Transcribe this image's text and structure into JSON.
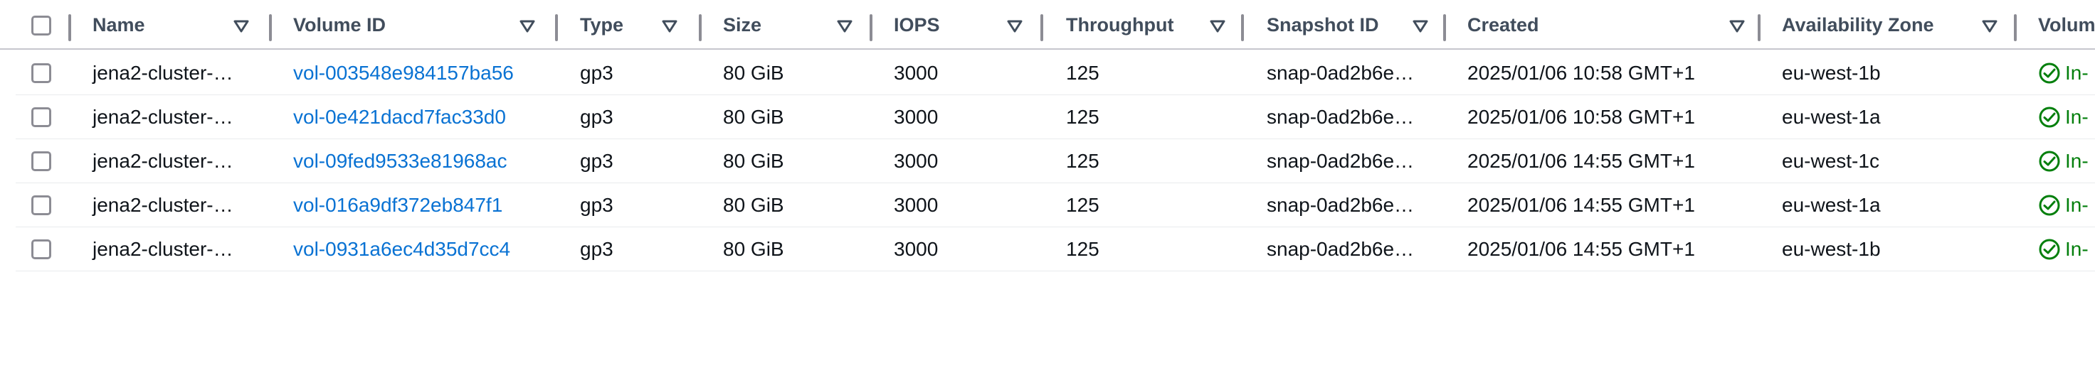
{
  "columns": [
    {
      "key": "name",
      "label": "Name"
    },
    {
      "key": "volume_id",
      "label": "Volume ID"
    },
    {
      "key": "type",
      "label": "Type"
    },
    {
      "key": "size",
      "label": "Size"
    },
    {
      "key": "iops",
      "label": "IOPS"
    },
    {
      "key": "throughput",
      "label": "Throughput"
    },
    {
      "key": "snapshot_id",
      "label": "Snapshot ID"
    },
    {
      "key": "created",
      "label": "Created"
    },
    {
      "key": "availability_zone",
      "label": "Availability Zone"
    },
    {
      "key": "volume_state",
      "label": "Volum"
    }
  ],
  "rows": [
    {
      "name": "jena2-cluster-…",
      "volume_id": "vol-003548e984157ba56",
      "type": "gp3",
      "size": "80 GiB",
      "iops": "3000",
      "throughput": "125",
      "snapshot_id": "snap-0ad2b6e…",
      "created": "2025/01/06 10:58 GMT+1",
      "availability_zone": "eu-west-1b",
      "volume_state": "In-"
    },
    {
      "name": "jena2-cluster-…",
      "volume_id": "vol-0e421dacd7fac33d0",
      "type": "gp3",
      "size": "80 GiB",
      "iops": "3000",
      "throughput": "125",
      "snapshot_id": "snap-0ad2b6e…",
      "created": "2025/01/06 10:58 GMT+1",
      "availability_zone": "eu-west-1a",
      "volume_state": "In-"
    },
    {
      "name": "jena2-cluster-…",
      "volume_id": "vol-09fed9533e81968ac",
      "type": "gp3",
      "size": "80 GiB",
      "iops": "3000",
      "throughput": "125",
      "snapshot_id": "snap-0ad2b6e…",
      "created": "2025/01/06 14:55 GMT+1",
      "availability_zone": "eu-west-1c",
      "volume_state": "In-"
    },
    {
      "name": "jena2-cluster-…",
      "volume_id": "vol-016a9df372eb847f1",
      "type": "gp3",
      "size": "80 GiB",
      "iops": "3000",
      "throughput": "125",
      "snapshot_id": "snap-0ad2b6e…",
      "created": "2025/01/06 14:55 GMT+1",
      "availability_zone": "eu-west-1a",
      "volume_state": "In-"
    },
    {
      "name": "jena2-cluster-…",
      "volume_id": "vol-0931a6ec4d35d7cc4",
      "type": "gp3",
      "size": "80 GiB",
      "iops": "3000",
      "throughput": "125",
      "snapshot_id": "snap-0ad2b6e…",
      "created": "2025/01/06 14:55 GMT+1",
      "availability_zone": "eu-west-1b",
      "volume_state": "In-"
    }
  ],
  "colors": {
    "link": "#0972d3",
    "status_success": "#037f0c",
    "header_text": "#414d5c"
  },
  "icons": {
    "sort": "caret-down-icon",
    "status": "check-circle-icon"
  }
}
